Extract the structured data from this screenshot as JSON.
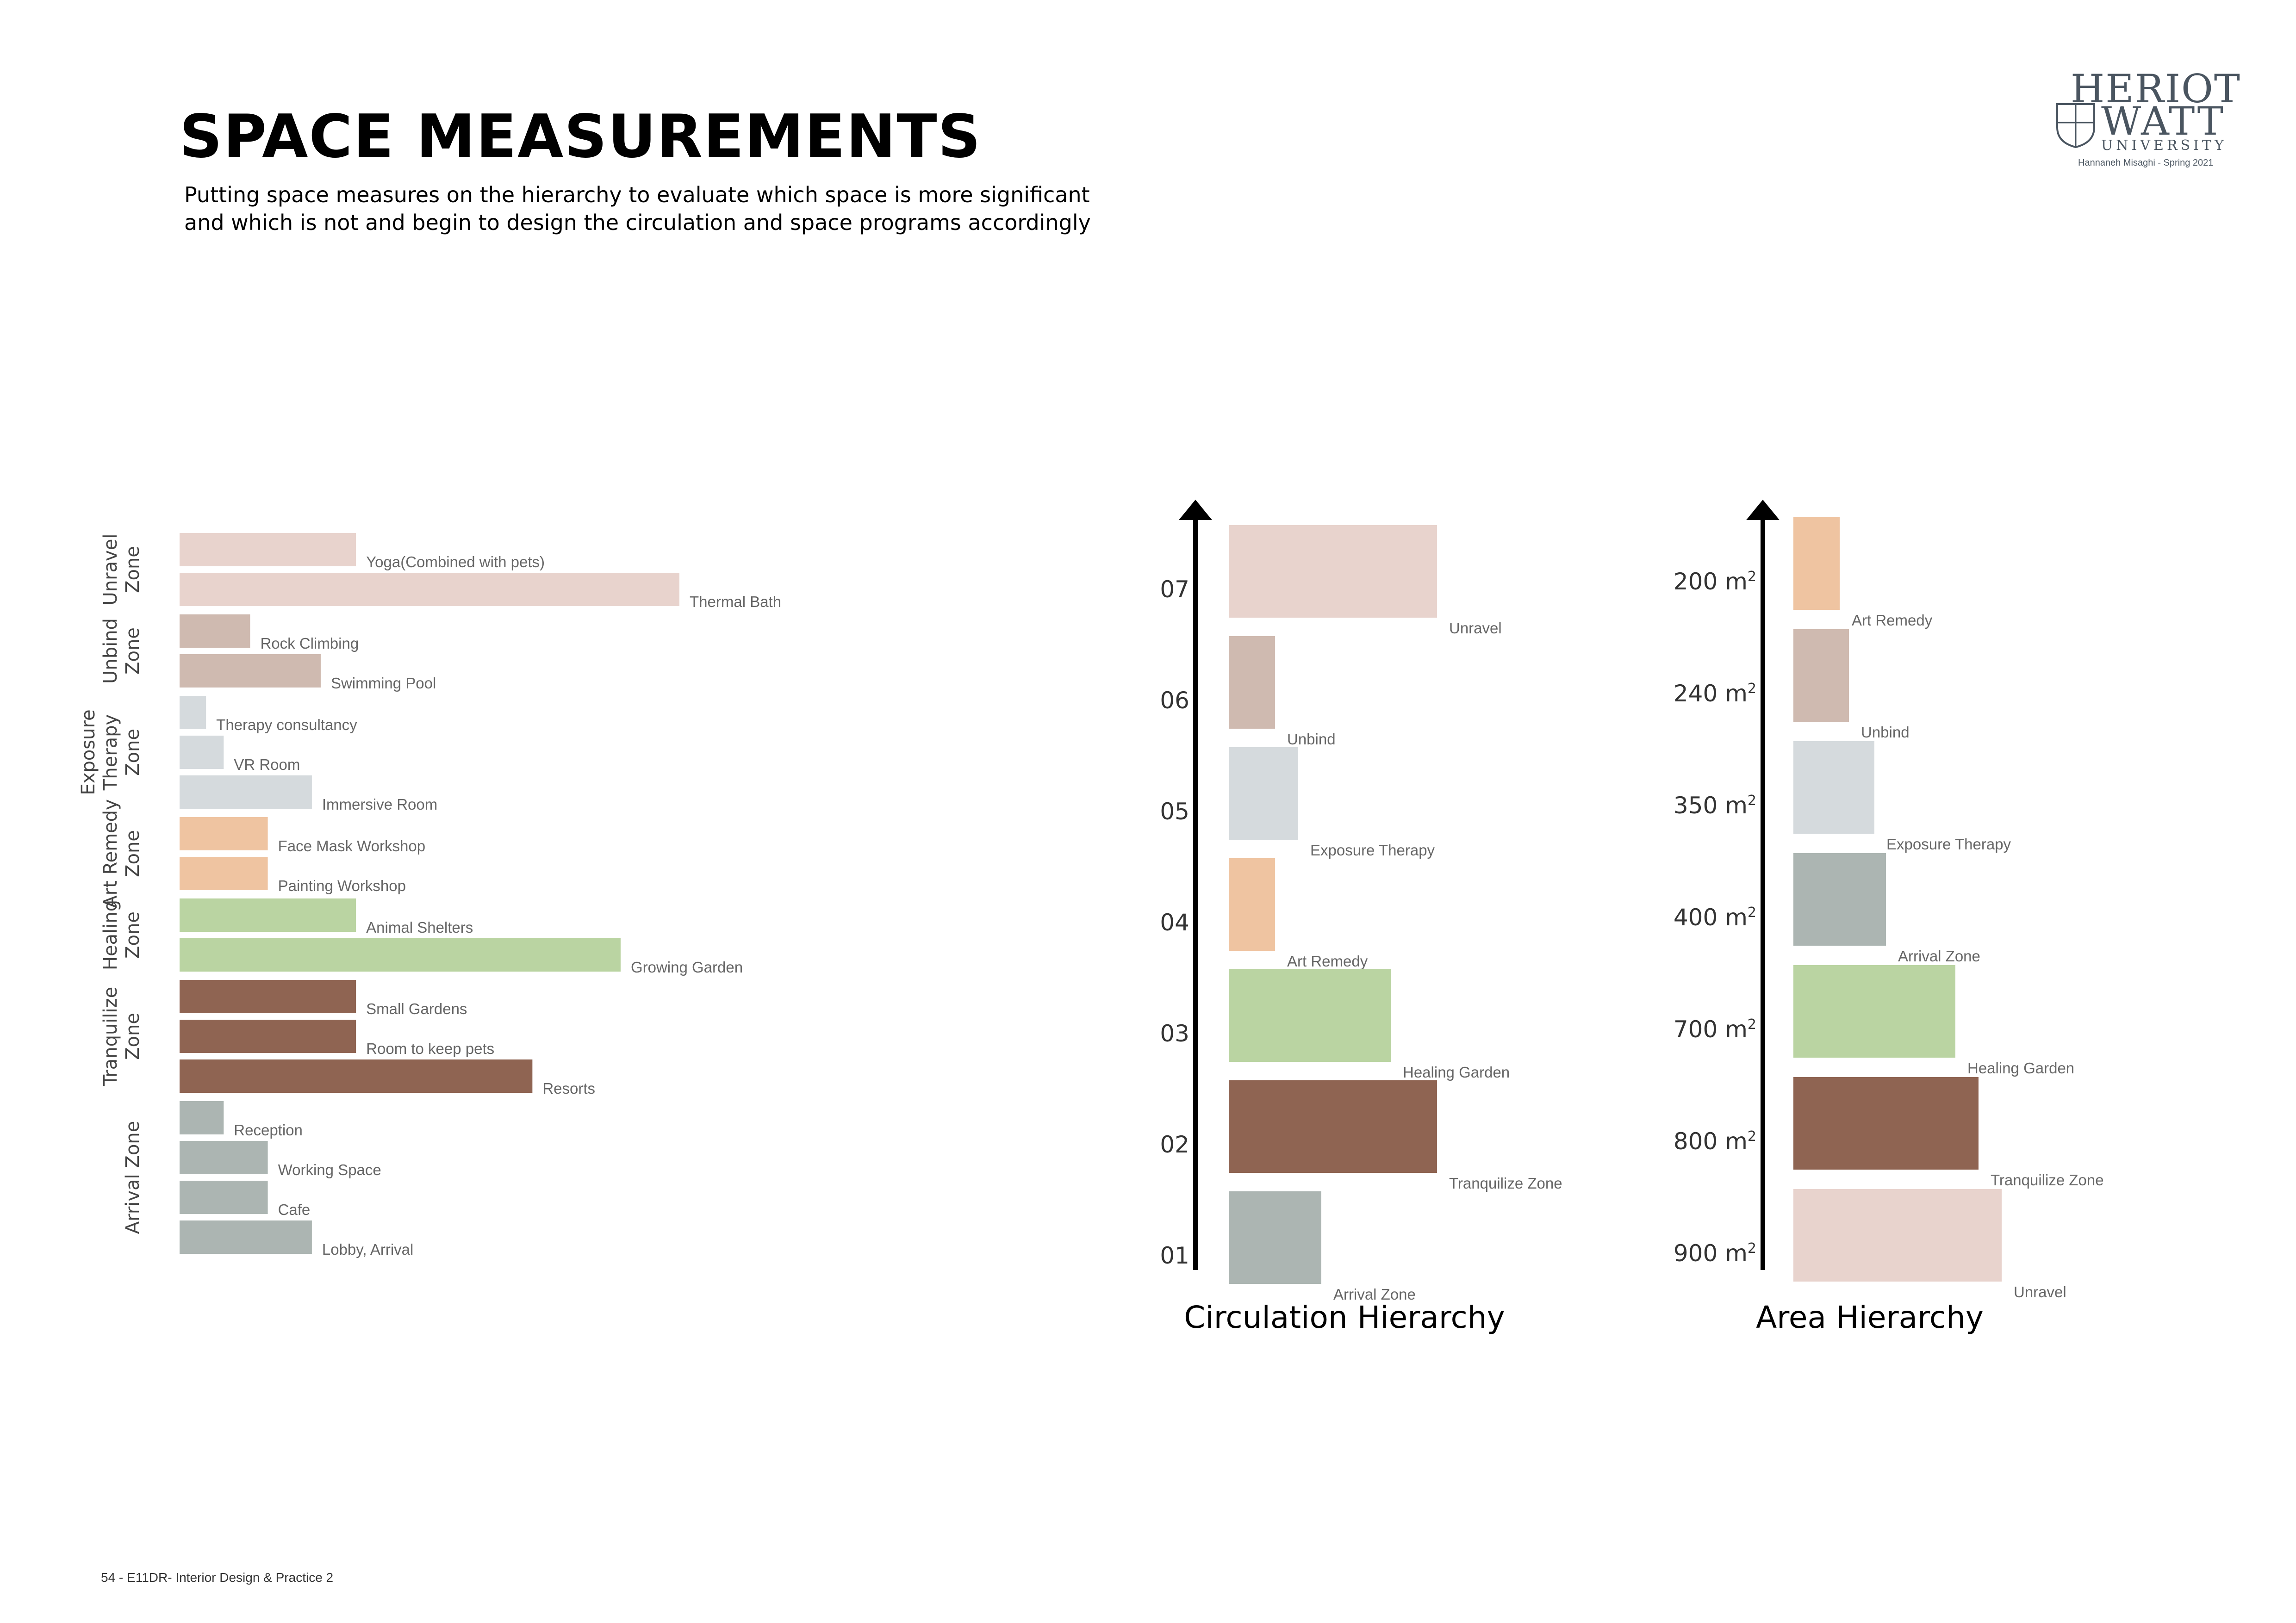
{
  "page": {
    "title": "SPACE MEASUREMENTS",
    "subtitle_line1": "Putting space measures on the hierarchy to evaluate which space is more significant",
    "subtitle_line2": "and which is not and  begin to design the circulation and space programs accordingly",
    "footer": "54  - E11DR- Interior Design & Practice 2"
  },
  "logo": {
    "line1": "HERIOT",
    "line2": "WATT",
    "line3": "UNIVERSITY",
    "credit": "Hannaneh Misaghi - Spring 2021",
    "crest_icon": "crest-icon"
  },
  "colors": {
    "unravel": "#e8d3cd",
    "unbind": "#cfbab0",
    "exposure": "#d5dadd",
    "art": "#efc4a1",
    "healing": "#bad4a2",
    "tranquilize": "#8f6452",
    "arrival": "#acb5b2"
  },
  "chart_data": [
    {
      "type": "bar",
      "orientation": "horizontal",
      "title": "",
      "note": "Relative space sizes grouped by zone; no numeric axis is printed",
      "groups": [
        {
          "zone": "Unravel Zone",
          "zone_lines": [
            "Unravel",
            "Zone"
          ],
          "color_key": "unravel",
          "bars": [
            {
              "label": "Yoga(Combined with pets)",
              "value": 6
            },
            {
              "label": "Thermal Bath",
              "value": 17
            }
          ]
        },
        {
          "zone": "Unbind Zone",
          "zone_lines": [
            "Unbind",
            "Zone"
          ],
          "color_key": "unbind",
          "bars": [
            {
              "label": "Rock Climbing",
              "value": 2.4
            },
            {
              "label": "Swimming Pool",
              "value": 4.8
            }
          ]
        },
        {
          "zone": "Exposure Therapy Zone",
          "zone_lines": [
            "Exposure",
            "Therapy",
            "Zone"
          ],
          "color_key": "exposure",
          "bars": [
            {
              "label": "Therapy consultancy",
              "value": 0.9
            },
            {
              "label": "VR Room",
              "value": 1.5
            },
            {
              "label": "Immersive Room",
              "value": 4.5
            }
          ]
        },
        {
          "zone": "Art Remedy Zone",
          "zone_lines": [
            "Art Remedy",
            "Zone"
          ],
          "color_key": "art",
          "bars": [
            {
              "label": "Face Mask Workshop",
              "value": 3
            },
            {
              "label": "Painting Workshop",
              "value": 3
            }
          ]
        },
        {
          "zone": "Healing Zone",
          "zone_lines": [
            "Healing",
            "Zone"
          ],
          "color_key": "healing",
          "bars": [
            {
              "label": "Animal Shelters",
              "value": 6
            },
            {
              "label": "Growing Garden",
              "value": 15
            }
          ]
        },
        {
          "zone": "Tranquilize Zone",
          "zone_lines": [
            "Tranquilize",
            "Zone"
          ],
          "color_key": "tranquilize",
          "bars": [
            {
              "label": "Small Gardens",
              "value": 6
            },
            {
              "label": "Room to keep pets",
              "value": 6
            },
            {
              "label": "Resorts",
              "value": 12
            }
          ]
        },
        {
          "zone": "Arrival Zone",
          "zone_lines": [
            "Arrival Zone"
          ],
          "color_key": "arrival",
          "bars": [
            {
              "label": "Reception",
              "value": 1.5
            },
            {
              "label": "Working Space",
              "value": 3
            },
            {
              "label": "Cafe",
              "value": 3
            },
            {
              "label": "Lobby, Arrival",
              "value": 4.5
            }
          ]
        }
      ]
    },
    {
      "type": "bar",
      "title": "Circulation Hierarchy",
      "axis": "vertical arrow, bottom to top",
      "ticks": [
        "07",
        "06",
        "05",
        "04",
        "03",
        "02",
        "01"
      ],
      "bars": [
        {
          "tick": "07",
          "label": "Unravel",
          "color_key": "unravel",
          "value": 4.5
        },
        {
          "tick": "06",
          "label": "Unbind",
          "color_key": "unbind",
          "value": 1
        },
        {
          "tick": "05",
          "label": "Exposure Therapy",
          "color_key": "exposure",
          "value": 1.5
        },
        {
          "tick": "04",
          "label": "Art Remedy",
          "color_key": "art",
          "value": 1
        },
        {
          "tick": "03",
          "label": "Healing Garden",
          "color_key": "healing",
          "value": 3.5
        },
        {
          "tick": "02",
          "label": "Tranquilize Zone",
          "color_key": "tranquilize",
          "value": 4.5
        },
        {
          "tick": "01",
          "label": "Arrival Zone",
          "color_key": "arrival",
          "value": 2
        }
      ]
    },
    {
      "type": "bar",
      "title": "Area Hierarchy",
      "axis": "vertical arrow, bottom to top",
      "unit": "m²",
      "ticks": [
        "200 m²",
        "240 m²",
        "350 m²",
        "400 m²",
        "700 m²",
        "800 m²",
        "900 m²"
      ],
      "bars": [
        {
          "tick": "200 m²",
          "label": "Art Remedy",
          "color_key": "art",
          "value": 200
        },
        {
          "tick": "240 m²",
          "label": "Unbind",
          "color_key": "unbind",
          "value": 240
        },
        {
          "tick": "350 m²",
          "label": "Exposure Therapy",
          "color_key": "exposure",
          "value": 350
        },
        {
          "tick": "400 m²",
          "label": "Arrival Zone",
          "color_key": "arrival",
          "value": 400
        },
        {
          "tick": "700 m²",
          "label": "Healing Garden",
          "color_key": "healing",
          "value": 700
        },
        {
          "tick": "800 m²",
          "label": "Tranquilize Zone",
          "color_key": "tranquilize",
          "value": 800
        },
        {
          "tick": "900 m²",
          "label": "Unravel",
          "color_key": "unravel",
          "value": 900
        }
      ]
    }
  ]
}
